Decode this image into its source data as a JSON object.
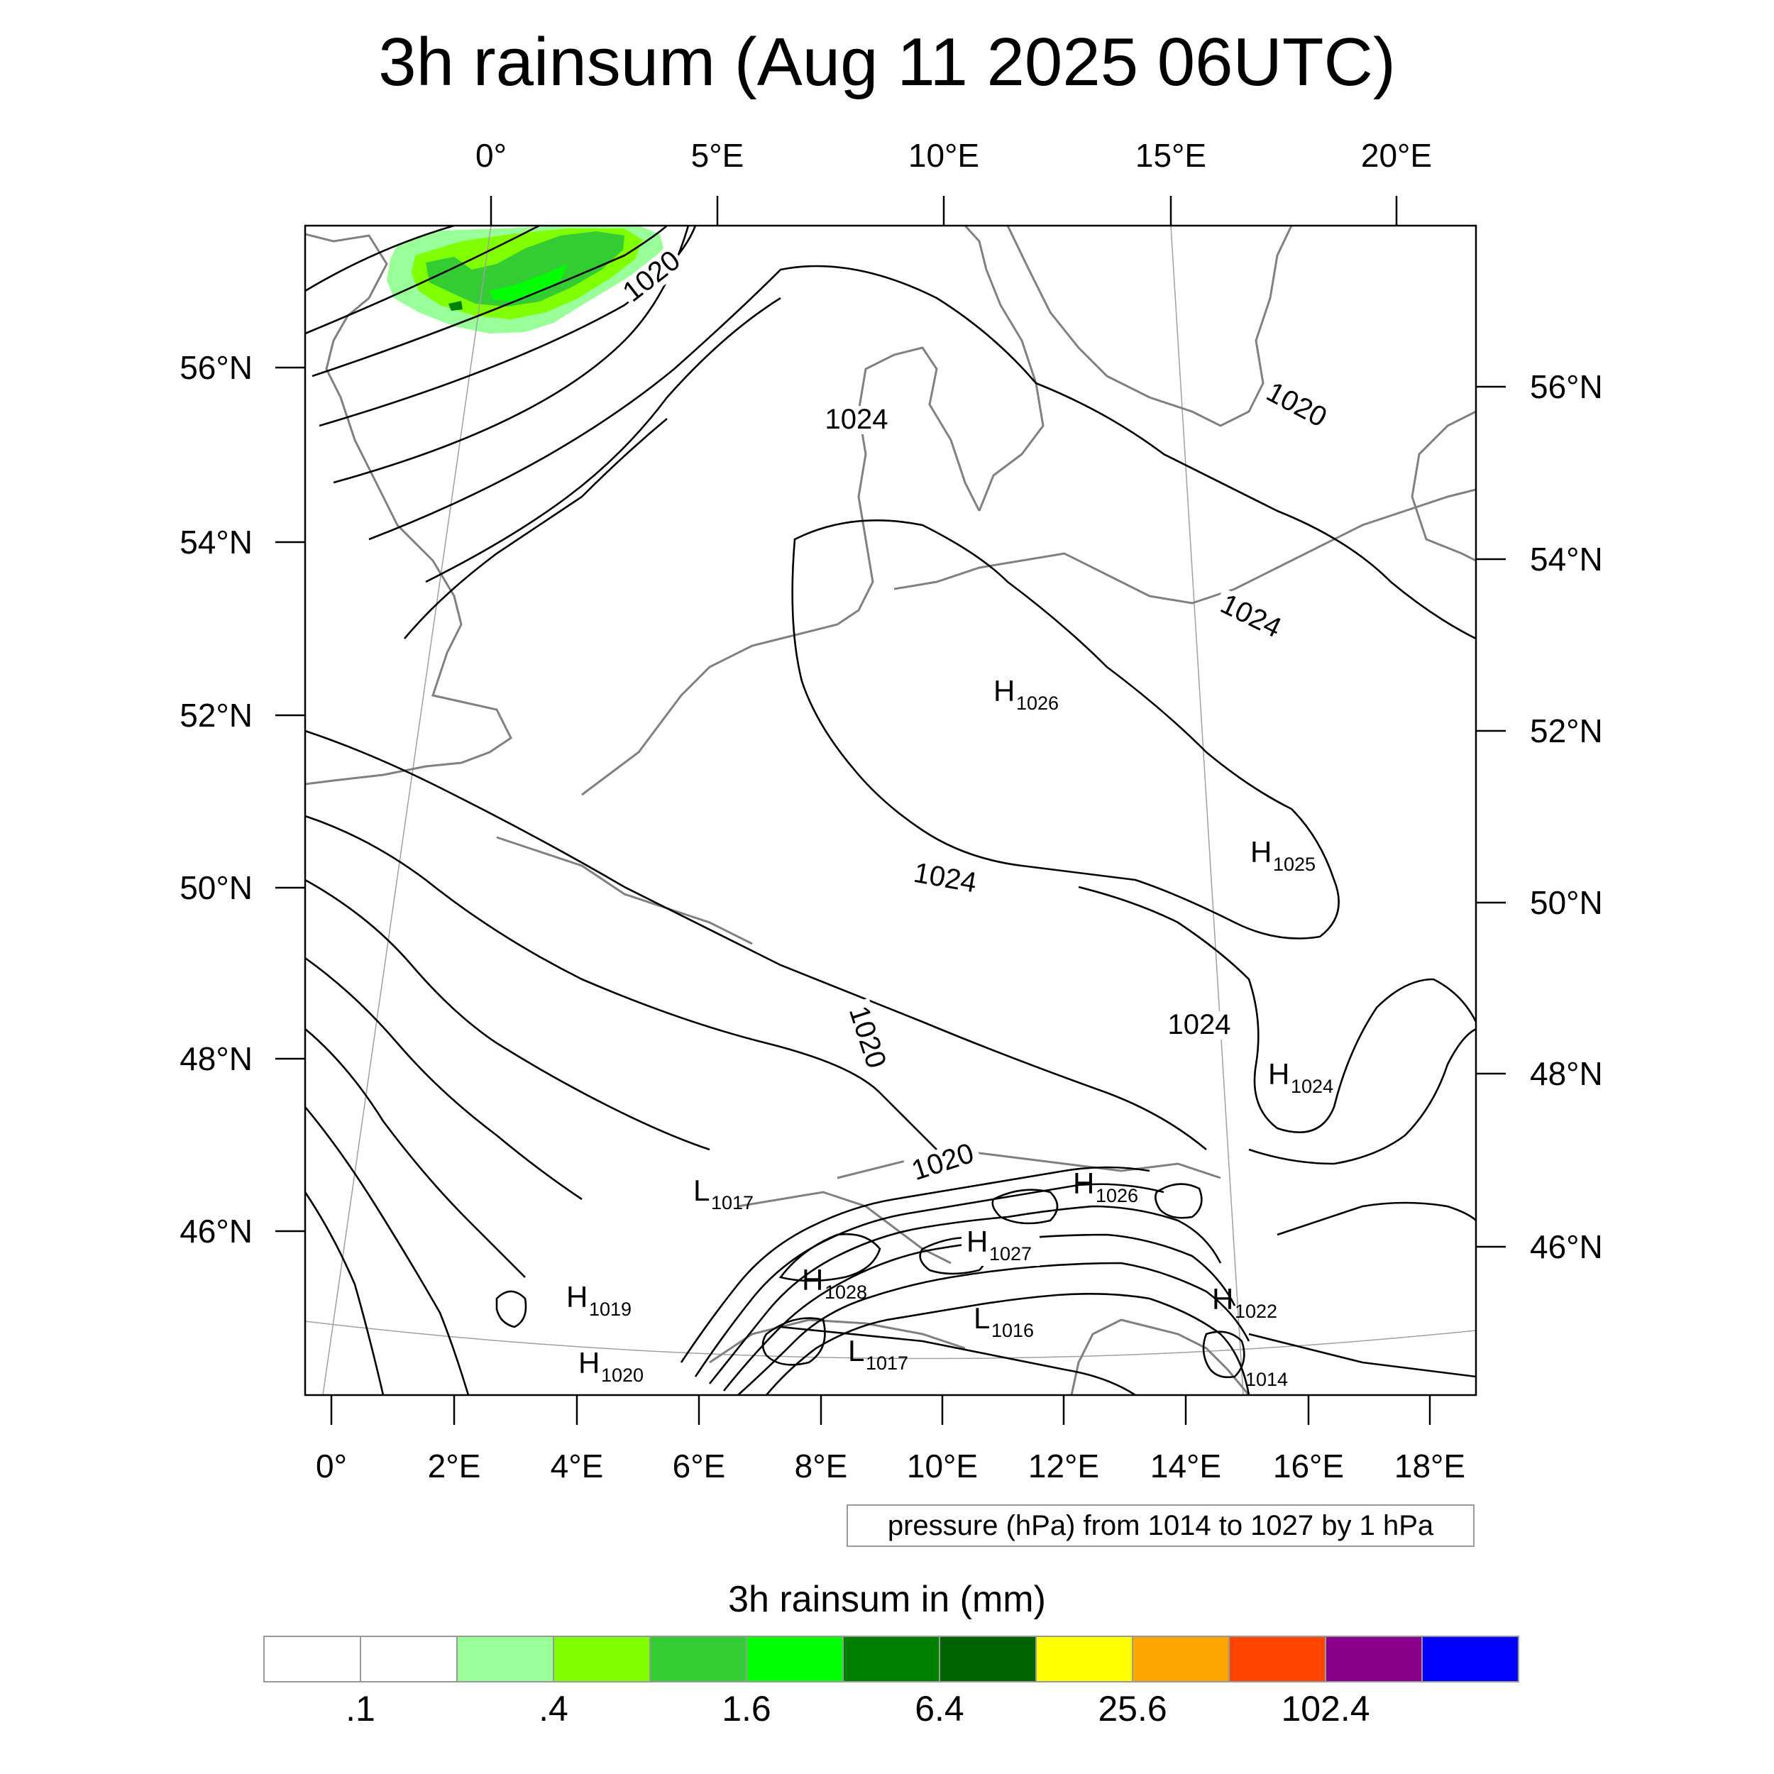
{
  "title": "3h rainsum (Aug 11 2025 06UTC)",
  "top_lon_labels": [
    "0°",
    "5°E",
    "10°E",
    "15°E",
    "20°E"
  ],
  "bottom_lon_labels": [
    "0°",
    "2°E",
    "4°E",
    "6°E",
    "8°E",
    "10°E",
    "12°E",
    "14°E",
    "16°E",
    "18°E"
  ],
  "left_lat_labels": [
    "56°N",
    "54°N",
    "52°N",
    "50°N",
    "48°N",
    "46°N"
  ],
  "right_lat_labels": [
    "56°N",
    "54°N",
    "52°N",
    "50°N",
    "48°N",
    "46°N"
  ],
  "isobar_labels": [
    {
      "text": "1020",
      "region": "north-sea"
    },
    {
      "text": "1024",
      "region": "denmark"
    },
    {
      "text": "1020",
      "region": "southern-sweden"
    },
    {
      "text": "1024",
      "region": "baltic"
    },
    {
      "text": "1024",
      "region": "central-germany"
    },
    {
      "text": "1020",
      "region": "southern-germany"
    },
    {
      "text": "1024",
      "region": "austria-north"
    },
    {
      "text": "1020",
      "region": "alps-north"
    }
  ],
  "pressure_centers": [
    {
      "letter": "H",
      "value": "1026",
      "region": "poland"
    },
    {
      "letter": "H",
      "value": "1025",
      "region": "czechia-east"
    },
    {
      "letter": "H",
      "value": "1024",
      "region": "slovakia"
    },
    {
      "letter": "L",
      "value": "1017",
      "region": "jura"
    },
    {
      "letter": "H",
      "value": "1026",
      "region": "austrian-alps"
    },
    {
      "letter": "H",
      "value": "1027",
      "region": "central-alps"
    },
    {
      "letter": "H",
      "value": "1028",
      "region": "western-alps"
    },
    {
      "letter": "H",
      "value": "1019",
      "region": "massif-central"
    },
    {
      "letter": "H",
      "value": "1020",
      "region": "massif-central-south"
    },
    {
      "letter": "L",
      "value": "1016",
      "region": "po-valley"
    },
    {
      "letter": "L",
      "value": "1017",
      "region": "ligurian"
    },
    {
      "letter": "H",
      "value": "1022",
      "region": "slovenia"
    },
    {
      "letter": "",
      "value": "1014",
      "region": "croatia"
    }
  ],
  "contour_note": "pressure (hPa) from 1014 to 1027 by 1 hPa",
  "colorbar": {
    "title": "3h rainsum in (mm)",
    "colors": [
      "#ffffff",
      "#ffffff",
      "#99ff99",
      "#80ff00",
      "#33cc33",
      "#00ff00",
      "#008000",
      "#006400",
      "#ffff00",
      "#ffa500",
      "#ff4500",
      "#8b008b",
      "#0000ff"
    ],
    "labels": [
      ".1",
      ".4",
      "1.6",
      "6.4",
      "25.6",
      "102.4"
    ]
  },
  "map": {
    "projection_frame": "lat-lon map of central Europe",
    "colors": {
      "frame": "#000000",
      "coast": "#808080",
      "grid": "#a0a0a0",
      "isobar": "#000000"
    }
  }
}
